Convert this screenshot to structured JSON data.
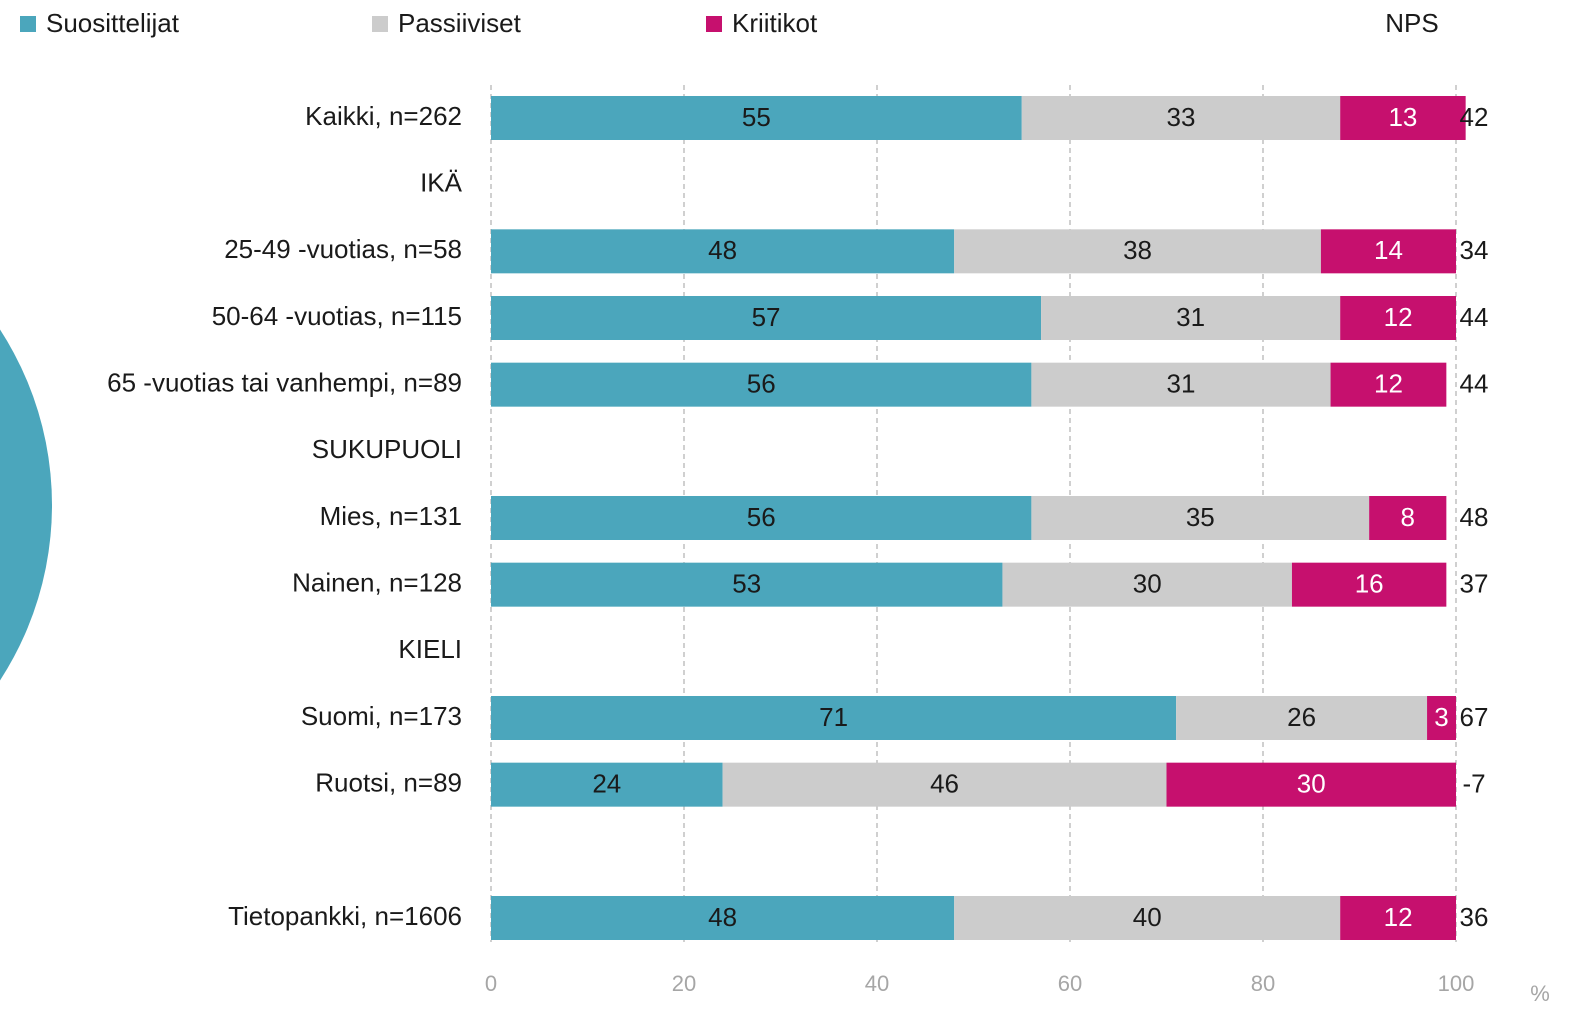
{
  "chart_data": {
    "type": "stacked_bar_horizontal",
    "categories": [
      "Kaikki, n=262",
      "IKÄ",
      "25-49 -vuotias, n=58",
      "50-64 -vuotias, n=115",
      "65 -vuotias tai vanhempi, n=89",
      "SUKUPUOLI",
      "Mies, n=131",
      "Nainen, n=128",
      "KIELI",
      "Suomi, n=173",
      "Ruotsi, n=89",
      null,
      "Tietopankki, n=1606"
    ],
    "series": [
      {
        "name": "Suosittelijat",
        "color": "#4ba6bc",
        "values": [
          55,
          null,
          48,
          57,
          56,
          null,
          56,
          53,
          null,
          71,
          24,
          null,
          48
        ]
      },
      {
        "name": "Passiiviset",
        "color": "#cccccc",
        "values": [
          33,
          null,
          38,
          31,
          31,
          null,
          35,
          30,
          null,
          26,
          46,
          null,
          40
        ]
      },
      {
        "name": "Kriitikot",
        "color": "#c6106e",
        "values": [
          13,
          null,
          14,
          12,
          12,
          null,
          8,
          16,
          null,
          3,
          30,
          null,
          12
        ]
      }
    ],
    "nps": {
      "name": "NPS",
      "values": [
        42,
        null,
        34,
        44,
        44,
        null,
        48,
        37,
        null,
        67,
        -7,
        null,
        36
      ]
    },
    "xlim": [
      0,
      100
    ],
    "xticks": [
      0,
      20,
      40,
      60,
      80,
      100
    ],
    "x_unit": "%",
    "grid": true,
    "legend": "top"
  }
}
